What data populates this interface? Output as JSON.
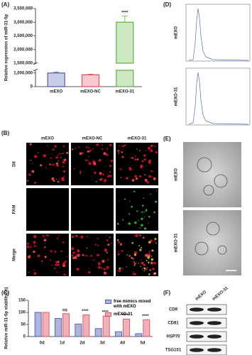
{
  "chart_data": [
    {
      "type": "bar",
      "label": "(A)",
      "y_label": "Relative expression of miR-31-5p",
      "categories": [
        "mEXO",
        "mEXO-NC",
        "mEXO-31"
      ],
      "values": [
        1000000,
        870000,
        3000000
      ],
      "errors": [
        60000,
        50000,
        220000
      ],
      "colors": [
        "#4a5bb0",
        "#e0505f",
        "#5cb040"
      ],
      "ylim": [
        0,
        3500000
      ],
      "axis_break": [
        1200000,
        1500000
      ],
      "yticks": [
        0,
        {
          "value": 1000000,
          "label": "1,000,000"
        },
        {
          "value": 1500000,
          "label": "1,500,000"
        },
        {
          "value": 2000000,
          "label": "2,000,000"
        },
        {
          "value": 2500000,
          "label": "2,500,000"
        },
        {
          "value": 3000000,
          "label": "3,000,000"
        },
        {
          "value": 3500000,
          "label": "3,500,000"
        }
      ],
      "significance": [
        null,
        null,
        "****"
      ]
    },
    {
      "type": "grouped_bar",
      "label": "(C)",
      "y_label": "Relative miR-31-5p stability(%)",
      "categories": [
        "0d",
        "1d",
        "2d",
        "3d",
        "4d",
        "5d"
      ],
      "series": [
        {
          "name": "free mimics mixed with mEXO",
          "color": "#4a5bb0",
          "values": [
            100,
            75,
            52,
            33,
            20,
            12
          ]
        },
        {
          "name": "mEXO-31",
          "color": "#e0505f",
          "values": [
            100,
            95,
            90,
            85,
            72,
            70
          ]
        }
      ],
      "ylim": [
        0,
        150
      ],
      "yticks": [
        0,
        50,
        100,
        150
      ],
      "significance": [
        null,
        "ns",
        "****",
        "****",
        "****",
        "****"
      ]
    }
  ],
  "panel_B": {
    "label": "(B)",
    "columns": [
      "mEXO",
      "mEXO-NC",
      "mEXO-31"
    ],
    "rows": [
      "DiI",
      "FAM",
      "Merge"
    ]
  },
  "panel_D": {
    "label": "(D)",
    "rows": [
      "mEXO",
      "mEXO-31"
    ]
  },
  "panel_E": {
    "label": "(E)",
    "rows": [
      "mEXO",
      "mEXO-31"
    ]
  },
  "panel_F": {
    "label": "(F)",
    "columns": [
      "mEXO",
      "mEXO-31"
    ],
    "rows": [
      "CD9",
      "CD81",
      "HSP70",
      "TSG101"
    ]
  }
}
